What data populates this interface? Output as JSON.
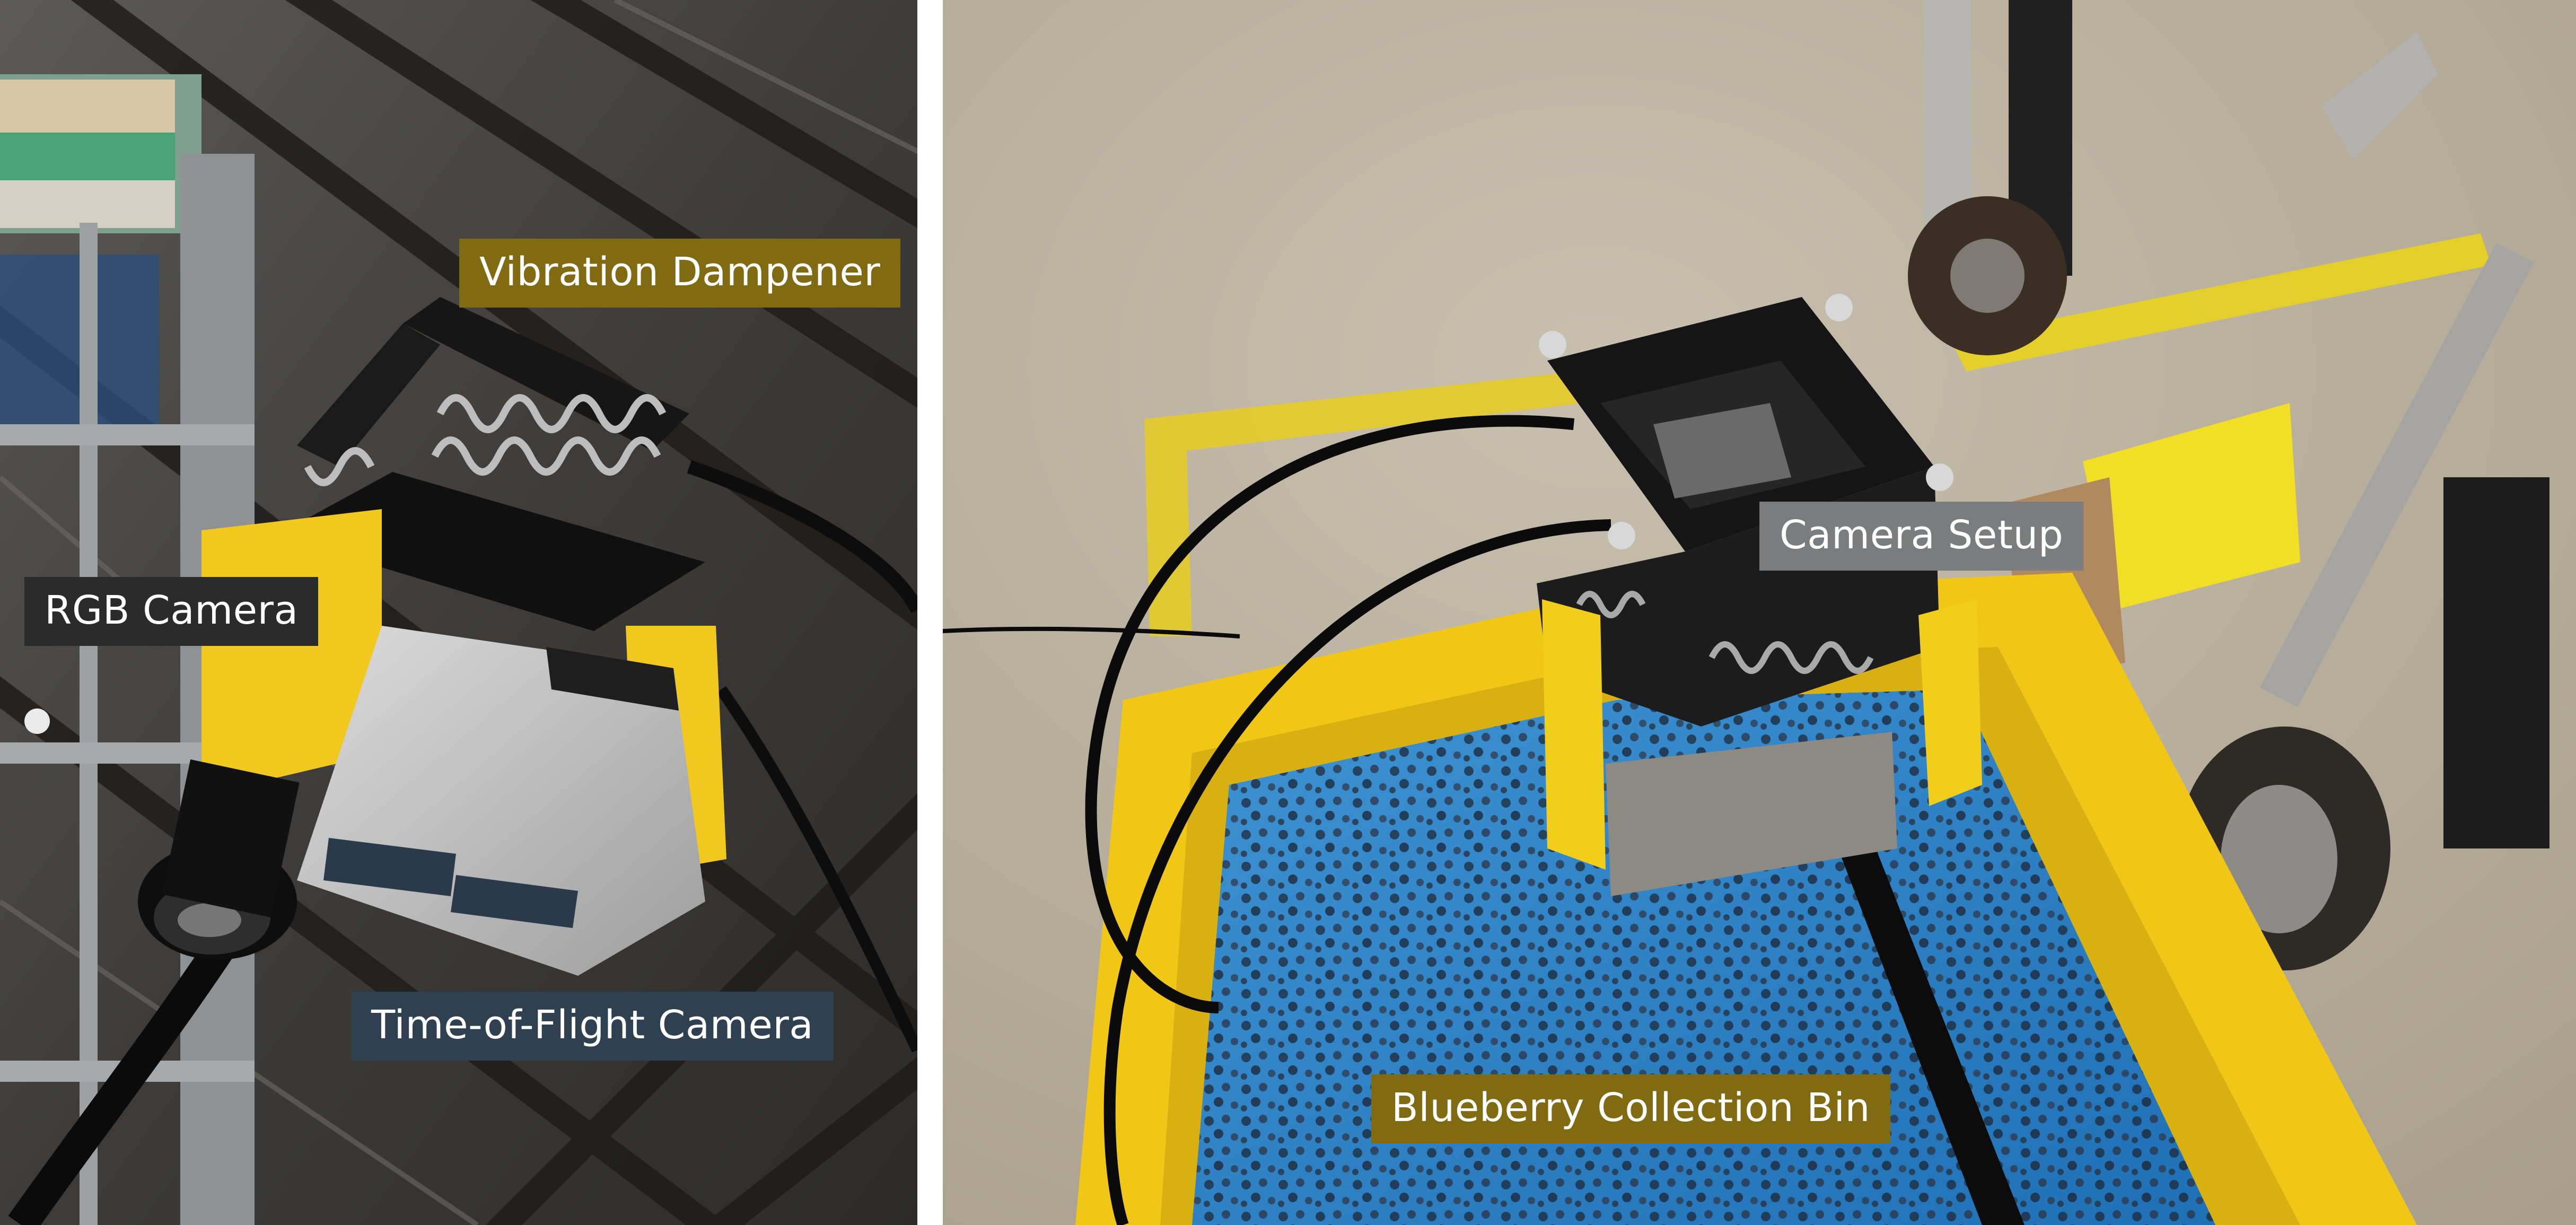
{
  "colors": {
    "gold_label": "#806a12",
    "dark_label": "#2b2b2b",
    "slate_label": "#2f4150",
    "gray_label": "#7a7c7d",
    "separator": "#ffffff",
    "bin_yellow": "#f4cc10",
    "berry_blue": "#2f86c8"
  },
  "panels": {
    "left": {
      "labels": {
        "vibration_dampener": "Vibration Dampener",
        "rgb_camera": "RGB Camera",
        "tof_camera": "Time-of-Flight Camera"
      }
    },
    "right": {
      "labels": {
        "camera_setup": "Camera Setup",
        "collection_bin": "Blueberry Collection Bin"
      }
    }
  }
}
